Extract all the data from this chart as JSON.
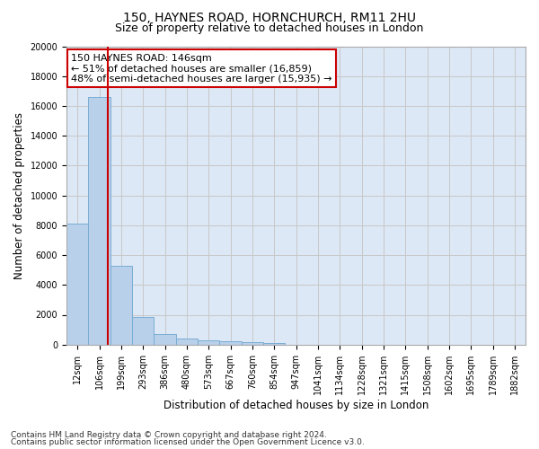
{
  "title_line1": "150, HAYNES ROAD, HORNCHURCH, RM11 2HU",
  "title_line2": "Size of property relative to detached houses in London",
  "xlabel": "Distribution of detached houses by size in London",
  "ylabel": "Number of detached properties",
  "footer_line1": "Contains HM Land Registry data © Crown copyright and database right 2024.",
  "footer_line2": "Contains public sector information licensed under the Open Government Licence v3.0.",
  "annotation_line1": "150 HAYNES ROAD: 146sqm",
  "annotation_line2": "← 51% of detached houses are smaller (16,859)",
  "annotation_line3": "48% of semi-detached houses are larger (15,935) →",
  "bar_labels": [
    "12sqm",
    "106sqm",
    "199sqm",
    "293sqm",
    "386sqm",
    "480sqm",
    "573sqm",
    "667sqm",
    "760sqm",
    "854sqm",
    "947sqm",
    "1041sqm",
    "1134sqm",
    "1228sqm",
    "1321sqm",
    "1415sqm",
    "1508sqm",
    "1602sqm",
    "1695sqm",
    "1789sqm",
    "1882sqm"
  ],
  "bar_values": [
    8100,
    16600,
    5300,
    1850,
    700,
    380,
    280,
    220,
    175,
    130,
    0,
    0,
    0,
    0,
    0,
    0,
    0,
    0,
    0,
    0,
    0
  ],
  "bar_color": "#b8d0ea",
  "bar_edge_color": "#7aadd4",
  "ylim": [
    0,
    20000
  ],
  "yticks": [
    0,
    2000,
    4000,
    6000,
    8000,
    10000,
    12000,
    14000,
    16000,
    18000,
    20000
  ],
  "grid_color": "#c8c8c8",
  "background_color": "#dce8f5",
  "annotation_box_facecolor": "#ffffff",
  "annotation_box_edgecolor": "#cc0000",
  "red_line_color": "#cc0000",
  "red_line_x": 1.4,
  "title_fontsize": 10,
  "subtitle_fontsize": 9,
  "axis_label_fontsize": 8.5,
  "tick_fontsize": 7,
  "annotation_fontsize": 8,
  "footer_fontsize": 6.5
}
